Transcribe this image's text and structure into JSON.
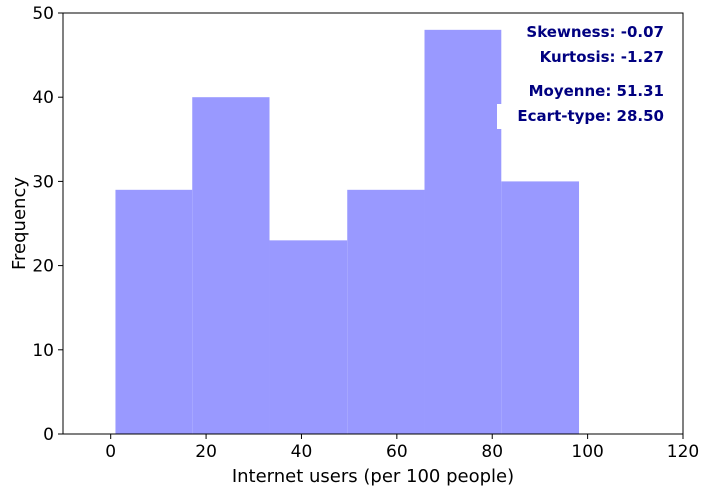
{
  "chart_data": {
    "type": "bar",
    "subtype": "histogram",
    "bins": [
      {
        "x0": 1.0,
        "x1": 17.1,
        "count": 29
      },
      {
        "x0": 17.1,
        "x1": 33.3,
        "count": 40
      },
      {
        "x0": 33.3,
        "x1": 49.6,
        "count": 23
      },
      {
        "x0": 49.6,
        "x1": 65.8,
        "count": 29
      },
      {
        "x0": 65.8,
        "x1": 81.9,
        "count": 48
      },
      {
        "x0": 81.9,
        "x1": 98.2,
        "count": 30
      }
    ],
    "xlabel": "Internet users (per 100 people)",
    "ylabel": "Frequency",
    "xlim": [
      -10,
      120
    ],
    "ylim": [
      0,
      50
    ],
    "xticks": [
      0,
      20,
      40,
      60,
      80,
      100,
      120
    ],
    "yticks": [
      0,
      10,
      20,
      30,
      40,
      50
    ],
    "grid": false,
    "bar_color": "#9999ff",
    "annotations": {
      "skewness": "Skewness: -0.07",
      "kurtosis": "Kurtosis: -1.27",
      "mean": "Moyenne: 51.31",
      "std": "Ecart-type: 28.50"
    },
    "annotation_color": "#000080"
  }
}
